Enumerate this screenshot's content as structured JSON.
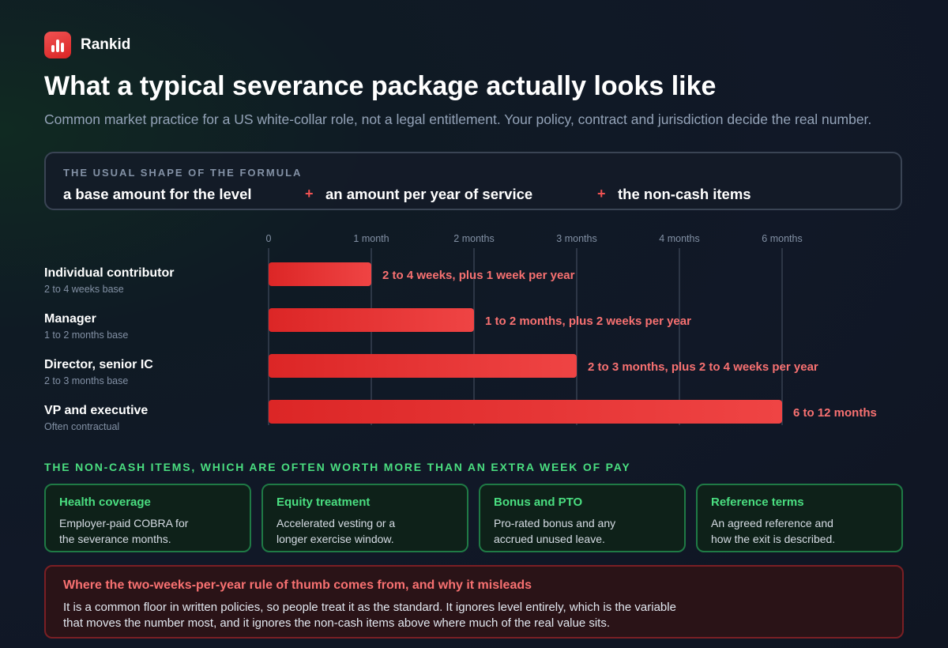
{
  "brand": {
    "name": "Rankid",
    "logo_icon": "bar-chart-icon"
  },
  "header": {
    "title": "What a typical severance package actually looks like",
    "subtitle": "Common market practice for a US white-collar role, not a legal entitlement. Your policy, contract and jurisdiction decide the real number."
  },
  "formula": {
    "label": "THE USUAL SHAPE OF THE FORMULA",
    "items": [
      "a base amount for the level",
      "an amount per year of service",
      "the non-cash items"
    ],
    "operator": "+"
  },
  "chart_data": {
    "type": "bar",
    "orientation": "horizontal",
    "x_ticks": [
      {
        "label": "0",
        "value": 0
      },
      {
        "label": "1 month",
        "value": 1
      },
      {
        "label": "2 months",
        "value": 2
      },
      {
        "label": "3 months",
        "value": 3
      },
      {
        "label": "4 months",
        "value": 4
      },
      {
        "label": "6 months",
        "value": 6
      }
    ],
    "xlim": [
      0,
      6
    ],
    "grid": true,
    "unit": "months",
    "bars": [
      {
        "category": "Individual contributor",
        "sublabel": "2 to 4 weeks base",
        "value": 1,
        "annotation": "2 to 4 weeks, plus 1 week per year"
      },
      {
        "category": "Manager",
        "sublabel": "1 to 2 months base",
        "value": 2,
        "annotation": "1 to 2 months, plus 2 weeks per year"
      },
      {
        "category": "Director, senior IC",
        "sublabel": "2 to 3 months base",
        "value": 3,
        "annotation": "2 to 3 months, plus 2 to 4 weeks per year"
      },
      {
        "category": "VP and executive",
        "sublabel": "Often contractual",
        "value": 6,
        "annotation": "6 to 12 months"
      }
    ],
    "colors": {
      "bar_start": "#dc2626",
      "bar_end": "#ef4444",
      "annotation": "#f87171",
      "grid": "#374151"
    }
  },
  "noncash": {
    "label": "THE NON-CASH ITEMS, WHICH ARE OFTEN WORTH MORE THAN AN EXTRA WEEK OF PAY",
    "cards": [
      {
        "title": "Health coverage",
        "body": "Employer-paid COBRA for the severance months."
      },
      {
        "title": "Equity treatment",
        "body": "Accelerated vesting or a longer exercise window."
      },
      {
        "title": "Bonus and PTO",
        "body": "Pro-rated bonus and any accrued unused leave."
      },
      {
        "title": "Reference terms",
        "body": "An agreed reference and how the exit is described."
      }
    ]
  },
  "warning": {
    "title": "Where the two-weeks-per-year rule of thumb comes from, and why it misleads",
    "body": "It is a common floor in written policies, so people treat it as the standard. It ignores level entirely, which is the variable that moves the number most, and it ignores the non-cash items above where much of the real value sits."
  },
  "colors": {
    "accent_red": "#ef4444",
    "accent_green": "#4ade80",
    "background": "#111827"
  }
}
